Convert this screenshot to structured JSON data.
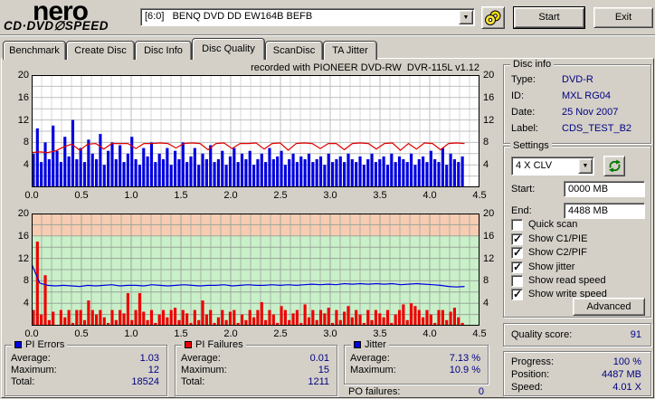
{
  "header": {
    "logo_brand": "nero",
    "logo_product": "CD·DVD∅SPEED",
    "drive_select": "[6:0]   BENQ DVD DD EW164B BEFB",
    "start_button": "Start",
    "exit_button": "Exit"
  },
  "tabs": [
    {
      "label": "Benchmark",
      "active": false
    },
    {
      "label": "Create Disc",
      "active": false
    },
    {
      "label": "Disc Info",
      "active": false
    },
    {
      "label": "Disc Quality",
      "active": true
    },
    {
      "label": "ScanDisc",
      "active": false
    },
    {
      "label": "TA Jitter",
      "active": false
    }
  ],
  "chart_data": [
    {
      "name": "pi-errors-chart",
      "type": "bar+line",
      "title": "recorded with PIONEER DVD-RW  DVR-115L v1.12",
      "x_range": [
        0,
        4.5
      ],
      "y_range": [
        0,
        20
      ],
      "x_ticks": [
        "0.0",
        "0.5",
        "1.0",
        "1.5",
        "2.0",
        "2.5",
        "3.0",
        "3.5",
        "4.0",
        "4.5"
      ],
      "y_ticks": [
        20,
        16,
        12,
        8,
        4
      ],
      "data_end_x": 4.35,
      "grid_minor": "#dadada",
      "grid_major": "#bfbfbf",
      "bands": [],
      "series": [
        {
          "name": "PI Errors",
          "type": "bar",
          "color": "#0000e0",
          "values": [
            6,
            10.5,
            4.5,
            8,
            5,
            11,
            6.5,
            4.5,
            9,
            5.5,
            12,
            5,
            7,
            4.5,
            8.5,
            6,
            5,
            9.5,
            4,
            6.5,
            8,
            5,
            7.5,
            4.5,
            6,
            9,
            5,
            4,
            7,
            5.5,
            8,
            4.5,
            6,
            5,
            7,
            4,
            6.5,
            5,
            8,
            4.5,
            5.5,
            7,
            4,
            6,
            5,
            7.5,
            4.5,
            5,
            6.5,
            4,
            5.5,
            7,
            4.5,
            6,
            5,
            6.5,
            4,
            5,
            6,
            4.5,
            7,
            5,
            5.5,
            6.5,
            4,
            5,
            6,
            4.5,
            5.5,
            5,
            6,
            4.5,
            5,
            5.5,
            4,
            6,
            4.5,
            5,
            5.5,
            4.5,
            6,
            5,
            4.5,
            5.5,
            4,
            5,
            6,
            4.5,
            5,
            5.5,
            4,
            6,
            4.5,
            5.5,
            5,
            4.5,
            6,
            4,
            5,
            5.5,
            4.5,
            6.5,
            5,
            4.5,
            7,
            4,
            6,
            5,
            4.5,
            5.5
          ]
        },
        {
          "name": "Write speed",
          "type": "line",
          "color": "#e00000",
          "values": [
            6.2,
            6.3,
            6.2,
            6.5,
            7.2,
            7.7,
            6.6,
            7.7,
            7.8,
            6.8,
            7.8,
            7.8,
            7.8,
            6.9,
            7.8,
            7.8,
            7.9,
            7.8,
            7.0,
            7.8,
            7.9,
            7.8,
            6.7,
            7.8,
            7.9,
            6.9,
            7.8,
            7.8,
            7.9,
            6.8,
            7.8,
            7.9,
            6.6,
            7.8,
            7.9,
            7.8,
            6.9,
            7.8,
            7.8,
            6.7,
            7.8,
            7.9,
            7.8,
            6.8,
            7.8,
            7.9,
            6.6,
            7.8,
            6.8,
            7.9,
            7.8,
            6.7,
            7.8,
            7.9,
            7.8
          ]
        }
      ]
    },
    {
      "name": "pi-failures-chart",
      "type": "bar+line",
      "title": "",
      "x_range": [
        0,
        4.5
      ],
      "y_range": [
        0,
        20
      ],
      "x_ticks": [
        "0.0",
        "0.5",
        "1.0",
        "1.5",
        "2.0",
        "2.5",
        "3.0",
        "3.5",
        "4.0",
        "4.5"
      ],
      "y_ticks": [
        20,
        16,
        12,
        8,
        4
      ],
      "data_end_x": 4.35,
      "grid_minor": "#a8b4a8",
      "grid_major": "#9aa69a",
      "bands": [
        {
          "from": 16,
          "to": 20,
          "color": "#f8ccb2"
        },
        {
          "from": 0,
          "to": 16,
          "color": "#c9f0c9"
        }
      ],
      "series": [
        {
          "name": "PI Failures",
          "type": "bar",
          "color": "#ee0000",
          "values": [
            2.8,
            15,
            2,
            9,
            1,
            2.5,
            0,
            2.8,
            1.5,
            2.8,
            0.5,
            2.8,
            2.8,
            1,
            4.5,
            2.8,
            2,
            2.8,
            1.5,
            0.5,
            2.8,
            1,
            2.8,
            2.2,
            5.8,
            1,
            2.8,
            5.8,
            2.5,
            1,
            2.8,
            0.5,
            2,
            2.8,
            1.5,
            2.8,
            3.2,
            1,
            2.8,
            2.2,
            0.5,
            2.8,
            1,
            4.5,
            2,
            2.8,
            0.5,
            1.5,
            2.8,
            1,
            2.5,
            2.8,
            0.5,
            2,
            1,
            2.8,
            1.5,
            2.8,
            4.2,
            1,
            2.8,
            2,
            0.5,
            3.5,
            2.8,
            1,
            2.2,
            2.8,
            0.5,
            3.8,
            1.5,
            2.8,
            1,
            2.8,
            2.2,
            3.2,
            0.5,
            2.8,
            1,
            2.5,
            3.5,
            1.5,
            2.8,
            2,
            0.5,
            2.8,
            1,
            2.8,
            2.2,
            1.5,
            2.8,
            0.5,
            2,
            2.8,
            3.8,
            1,
            4,
            3.5,
            2.8,
            1.5,
            2.8,
            2,
            0.5,
            2.8,
            2.8,
            1,
            2.5,
            3.2,
            1.5,
            0.5
          ]
        },
        {
          "name": "Jitter",
          "type": "line",
          "color": "#0000e0",
          "values": [
            11,
            7.6,
            7.2,
            7.1,
            7.2,
            7.1,
            7.0,
            7.2,
            7.1,
            7.2,
            7.3,
            7.1,
            7.2,
            7.2,
            7.1,
            7.3,
            7.2,
            7.1,
            7.2,
            7.3,
            7.2,
            7.1,
            7.2,
            7.2,
            7.3,
            7.1,
            7.2,
            7.3,
            7.2,
            7.2,
            7.3,
            7.2,
            7.3,
            7.2,
            7.3,
            7.4,
            7.3,
            7.4,
            7.3,
            7.5,
            7.4,
            7.5,
            7.4,
            7.5,
            7.4,
            7.5,
            7.3,
            7.4,
            7.5,
            7.4,
            7.3,
            7.2,
            7.0,
            6.9,
            7.0
          ]
        }
      ]
    }
  ],
  "disc_info": {
    "title": "Disc info",
    "rows": [
      {
        "label": "Type:",
        "value": "DVD-R"
      },
      {
        "label": "ID:",
        "value": "MXL RG04"
      },
      {
        "label": "Date:",
        "value": "25 Nov 2007"
      },
      {
        "label": "Label:",
        "value": "CDS_TEST_B2"
      }
    ]
  },
  "settings": {
    "title": "Settings",
    "speed_select": "4 X CLV",
    "start_label": "Start:",
    "start_value": "0000 MB",
    "end_label": "End:",
    "end_value": "4488 MB",
    "checkboxes": [
      {
        "label": "Quick scan",
        "checked": false
      },
      {
        "label": "Show C1/PIE",
        "checked": true
      },
      {
        "label": "Show C2/PIF",
        "checked": true
      },
      {
        "label": "Show jitter",
        "checked": true
      },
      {
        "label": "Show read speed",
        "checked": false
      },
      {
        "label": "Show write speed",
        "checked": true
      }
    ],
    "advanced_button": "Advanced"
  },
  "quality_score": {
    "label": "Quality score:",
    "value": "91"
  },
  "progress_panel": {
    "rows": [
      {
        "label": "Progress:",
        "value": "100 %"
      },
      {
        "label": "Position:",
        "value": "4487 MB"
      },
      {
        "label": "Speed:",
        "value": "4.01 X"
      }
    ]
  },
  "stats": {
    "pi_errors": {
      "title": "PI Errors",
      "color": "#0000e0",
      "rows": [
        {
          "label": "Average:",
          "value": "1.03"
        },
        {
          "label": "Maximum:",
          "value": "12"
        },
        {
          "label": "Total:",
          "value": "18524"
        }
      ]
    },
    "pi_failures": {
      "title": "PI Failures",
      "color": "#ee0000",
      "rows": [
        {
          "label": "Average:",
          "value": "0.01"
        },
        {
          "label": "Maximum:",
          "value": "15"
        },
        {
          "label": "Total:",
          "value": "1211"
        }
      ]
    },
    "jitter": {
      "title": "Jitter",
      "color": "#0000e0",
      "rows": [
        {
          "label": "Average:",
          "value": "7.13 %"
        },
        {
          "label": "Maximum:",
          "value": "10.9 %"
        }
      ]
    },
    "po_failures": {
      "label": "PO failures:",
      "value": "0"
    }
  }
}
